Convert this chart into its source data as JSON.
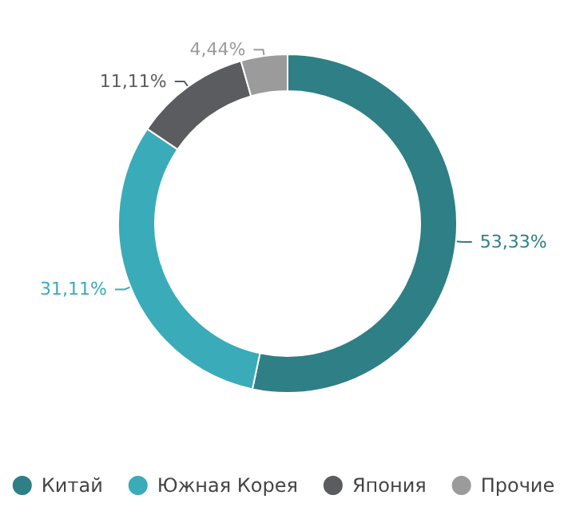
{
  "chart_data": {
    "type": "donut",
    "categories": [
      "Китай",
      "Южная Корея",
      "Япония",
      "Прочие"
    ],
    "values": [
      53.33,
      31.11,
      11.11,
      4.44
    ],
    "value_labels": [
      "53,33%",
      "31,11%",
      "11,11%",
      "4,44%"
    ],
    "colors": [
      "#2e7f86",
      "#3aabb8",
      "#5a5c60",
      "#9b9b9b"
    ],
    "legend": "bottom"
  }
}
